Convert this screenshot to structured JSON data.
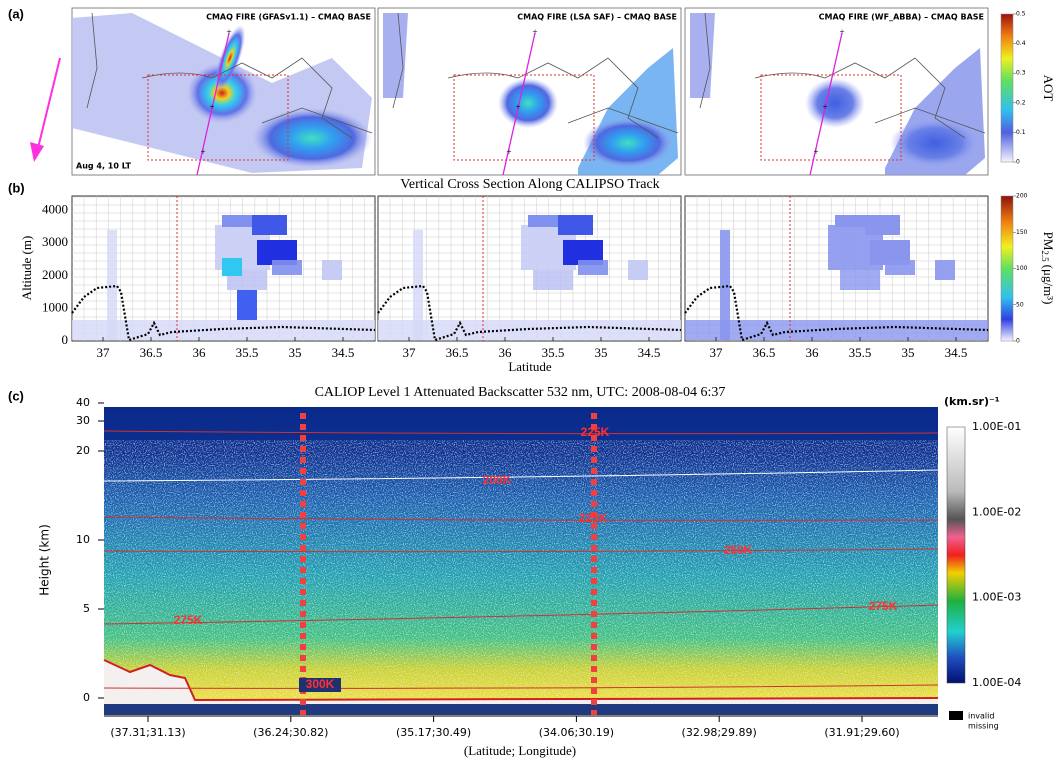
{
  "panel_a": {
    "label": "(a)",
    "titles": [
      "CMAQ FIRE (GFASv1.1) – CMAQ BASE",
      "CMAQ FIRE (LSA SAF) – CMAQ BASE",
      "CMAQ FIRE (WF_ABBA) – CMAQ BASE"
    ],
    "date": "Aug 4, 10 LT",
    "colorbar": {
      "label": "AOT",
      "ticks": [
        "0",
        "0.1",
        "0.2",
        "0.3",
        "0.4",
        "0.5"
      ]
    }
  },
  "panel_b": {
    "label": "(b)",
    "title": "Vertical Cross Section Along CALIPSO Track",
    "y_label": "Altitude (m)",
    "x_label": "Latitude",
    "yticks": [
      "0",
      "1000",
      "2000",
      "3000",
      "4000"
    ],
    "xticks": [
      "37",
      "36.5",
      "36",
      "35.5",
      "35",
      "34.5"
    ],
    "colorbar": {
      "label_main": "PM",
      "label_sub": "2.5",
      "label_unit": "(μg/m³)",
      "ticks": [
        "0",
        "50",
        "100",
        "150",
        "200"
      ]
    }
  },
  "panel_c": {
    "label": "(c)",
    "title": "CALIOP Level 1 Attenuated Backscatter 532 nm, UTC: 2008-08-04 6:37",
    "y_label": "Height (km)",
    "x_label": "(Latitude; Longitude)",
    "yticks": [
      "0",
      "5",
      "10",
      "20",
      "30",
      "40"
    ],
    "xticks": [
      "(37.31;31.13)",
      "(36.24;30.82)",
      "(35.17;30.49)",
      "(34.06;30.19)",
      "(32.98;29.89)",
      "(31.91;29.60)"
    ],
    "contour_labels": [
      "225K",
      "200K",
      "225K",
      "250K",
      "275K",
      "275K",
      "300K"
    ],
    "colorbar": {
      "unit": "(km.sr)⁻¹",
      "ticks": [
        "1.00E-01",
        "1.00E-02",
        "1.00E-03",
        "1.00E-04"
      ],
      "invalid": "invalid",
      "missing": "missing"
    }
  }
}
